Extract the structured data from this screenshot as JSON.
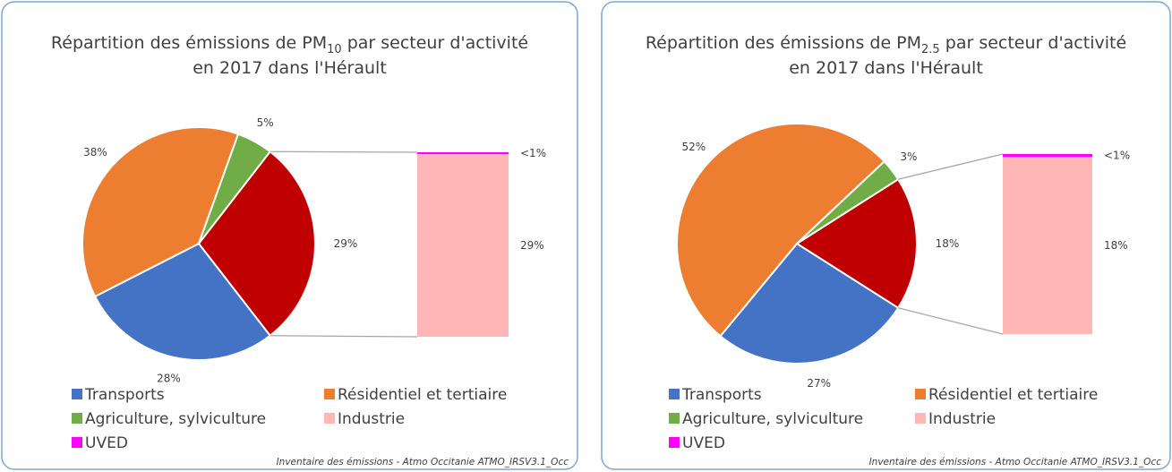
{
  "chart_data": [
    {
      "type": "pie-of-bar",
      "title_prefix": "Répartition des émissions de PM",
      "title_subscript": "10",
      "title_suffix": " par secteur d'activité",
      "title_line2": "en 2017 dans l'Hérault",
      "categories": [
        "Transports",
        "Résidentiel et tertiaire",
        "Agriculture, sylviculture",
        "Industrie",
        "UVED"
      ],
      "values": [
        28,
        38,
        5,
        29,
        0.3
      ],
      "value_labels": [
        "28%",
        "38%",
        "5%",
        "29%",
        "<1%"
      ],
      "colors": [
        "#4472c4",
        "#ed7d31",
        "#70ad47",
        "#ffb6b6",
        "#ff00ff"
      ],
      "split_count": 2,
      "combined_value": 29,
      "combined_label": "29%",
      "combined_color": "#c00000",
      "source": "Inventaire des émissions - Atmo Occitanie ATMO_IRSV3.1_Occ"
    },
    {
      "type": "pie-of-bar",
      "title_prefix": "Répartition des émissions de PM",
      "title_subscript": "2.5",
      "title_suffix": " par secteur d'activité",
      "title_line2": "en 2017 dans l'Hérault",
      "categories": [
        "Transports",
        "Résidentiel et tertiaire",
        "Agriculture, sylviculture",
        "Industrie",
        "UVED"
      ],
      "values": [
        27,
        52,
        3,
        18,
        0.3
      ],
      "value_labels": [
        "27%",
        "52%",
        "3%",
        "18%",
        "<1%"
      ],
      "colors": [
        "#4472c4",
        "#ed7d31",
        "#70ad47",
        "#ffb6b6",
        "#ff00ff"
      ],
      "split_count": 2,
      "combined_value": 18,
      "combined_label": "18%",
      "combined_color": "#c00000",
      "source": "Inventaire des émissions - Atmo Occitanie ATMO_IRSV3.1_Occ"
    }
  ]
}
